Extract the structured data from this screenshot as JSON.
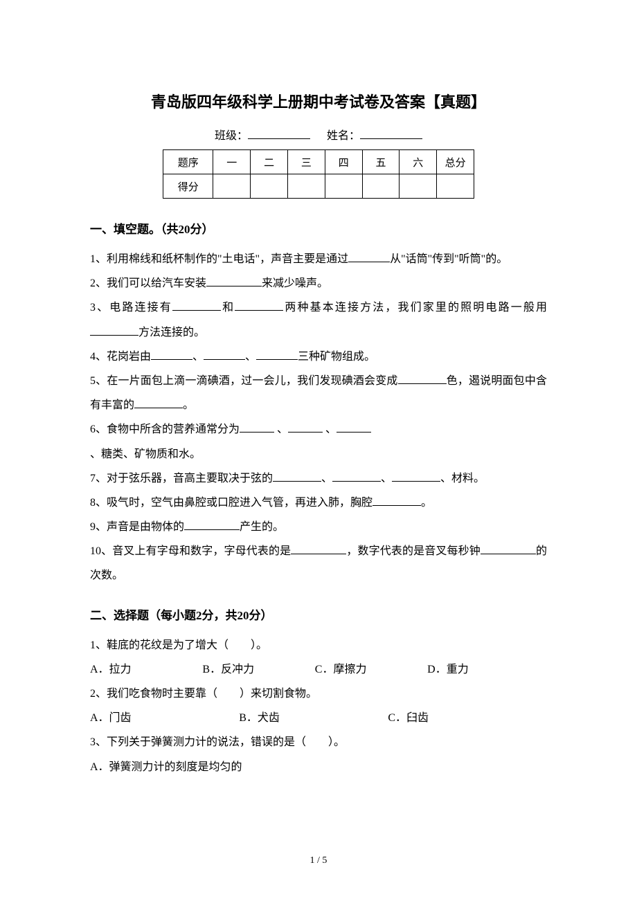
{
  "title": "青岛版四年级科学上册期中考试卷及答案【真题】",
  "header": {
    "classLabel": "班级：",
    "nameLabel": "姓名："
  },
  "scoreTable": {
    "row1": [
      "题序",
      "一",
      "二",
      "三",
      "四",
      "五",
      "六",
      "总分"
    ],
    "row2Label": "得分"
  },
  "section1": {
    "heading": "一、填空题。（共20分）",
    "q1a": "1、利用棉线和纸杯制作的\"土电话\"，声音主要是通过",
    "q1b": "从\"话筒\"传到\"听筒\"的。",
    "q2a": "2、我们可以给汽车安装",
    "q2b": "来减少噪声。",
    "q3a": "3、电路连接有",
    "q3b": "和",
    "q3c": "两种基本连接方法，我们家里的照明电路一般用",
    "q3d": "方法连接的。",
    "q4a": "4、花岗岩由",
    "q4b": "、",
    "q4c": "、",
    "q4d": "三种矿物组成。",
    "q5a": "5、在一片面包上滴一滴碘酒，过一会儿，我们发现碘酒会变成",
    "q5b": "色，遏说明面包中含有丰富的",
    "q5c": "。",
    "q6a": "6、食物中所含的营养通常分为",
    "q6b": " 、",
    "q6c": " 、",
    "q6d": "、糖类、矿物质和水。",
    "q7a": "7、对于弦乐器，音高主要取决于弦的",
    "q7b": "、",
    "q7c": "、",
    "q7d": "、材料。",
    "q8a": "8、吸气时，空气由鼻腔或口腔进入气管，再进入肺，胸腔",
    "q8b": "。",
    "q9a": "9、声音是由物体的",
    "q9b": "产生的。",
    "q10a": "10、音叉上有字母和数字，字母代表的是",
    "q10b": "，数字代表的是音叉每秒钟",
    "q10c": "的次数。"
  },
  "section2": {
    "heading": "二、选择题（每小题2分，共20分）",
    "q1": "1、鞋底的花纹是为了增大（　　）。",
    "q1opts": {
      "a": "A．拉力",
      "b": "B．反冲力",
      "c": "C．摩擦力",
      "d": "D．重力"
    },
    "q2": "2、我们吃食物时主要靠（　　）来切割食物。",
    "q2opts": {
      "a": "A．门齿",
      "b": "B．犬齿",
      "c": "C．臼齿"
    },
    "q3": "3、下列关于弹簧测力计的说法，错误的是（　　）。",
    "q3a": "A．弹簧测力计的刻度是均匀的"
  },
  "pageNumber": "1 / 5"
}
